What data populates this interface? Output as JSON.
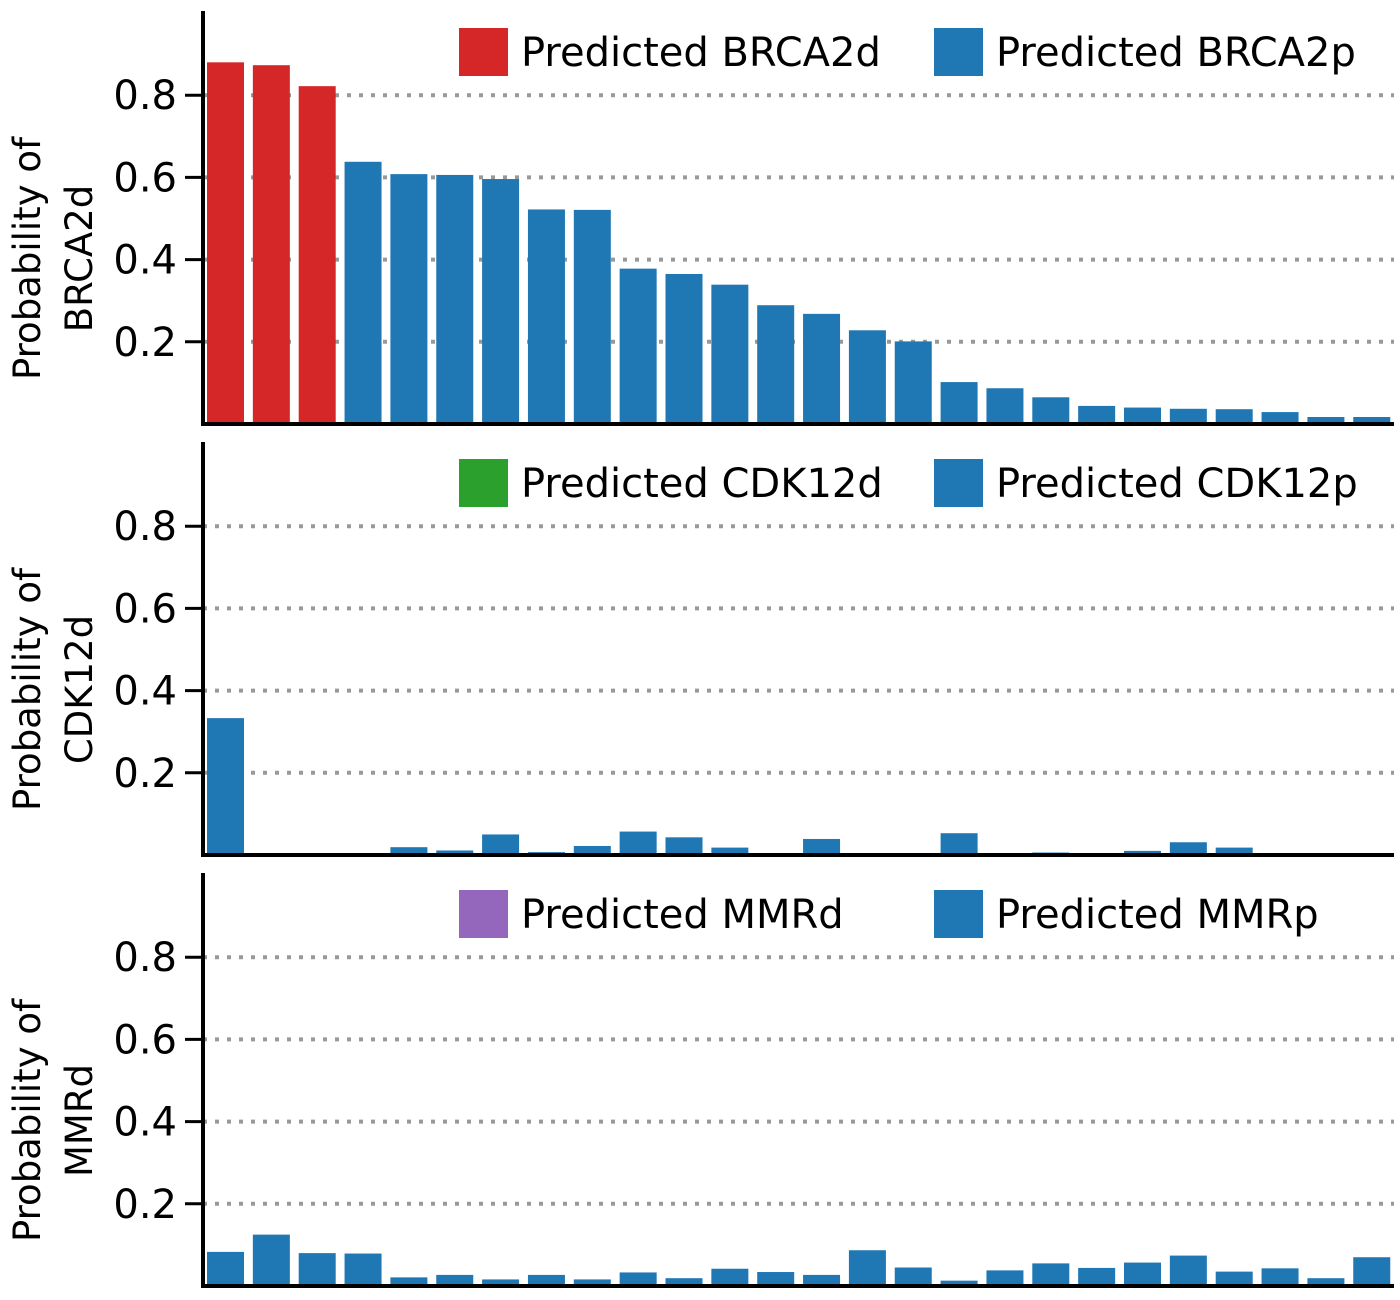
{
  "chart_data": [
    {
      "type": "bar",
      "ylabel_lines": [
        "Probability of",
        "BRCA2d"
      ],
      "ylim": [
        0,
        1.0
      ],
      "yticks": [
        0.2,
        0.4,
        0.6,
        0.8
      ],
      "ytick_labels": [
        "0.2",
        "0.4",
        "0.6",
        "0.8"
      ],
      "grid": "horizontal-dotted",
      "legend_position": "top-right",
      "legend": [
        {
          "label": "Predicted BRCA2d",
          "color": "#d62728"
        },
        {
          "label": "Predicted BRCA2p",
          "color": "#1f77b4"
        }
      ],
      "values": [
        0.88,
        0.873,
        0.822,
        0.638,
        0.608,
        0.606,
        0.596,
        0.522,
        0.521,
        0.378,
        0.365,
        0.339,
        0.289,
        0.268,
        0.228,
        0.201,
        0.102,
        0.087,
        0.065,
        0.044,
        0.04,
        0.037,
        0.036,
        0.029,
        0.017,
        0.017
      ],
      "colors": [
        "#d62728",
        "#d62728",
        "#d62728",
        "#1f77b4",
        "#1f77b4",
        "#1f77b4",
        "#1f77b4",
        "#1f77b4",
        "#1f77b4",
        "#1f77b4",
        "#1f77b4",
        "#1f77b4",
        "#1f77b4",
        "#1f77b4",
        "#1f77b4",
        "#1f77b4",
        "#1f77b4",
        "#1f77b4",
        "#1f77b4",
        "#1f77b4",
        "#1f77b4",
        "#1f77b4",
        "#1f77b4",
        "#1f77b4",
        "#1f77b4",
        "#1f77b4"
      ]
    },
    {
      "type": "bar",
      "ylabel_lines": [
        "Probability of",
        "CDK12d"
      ],
      "ylim": [
        0,
        1.0
      ],
      "yticks": [
        0.2,
        0.4,
        0.6,
        0.8
      ],
      "ytick_labels": [
        "0.2",
        "0.4",
        "0.6",
        "0.8"
      ],
      "grid": "horizontal-dotted",
      "legend_position": "top-right",
      "legend": [
        {
          "label": "Predicted CDK12d",
          "color": "#2ca02c"
        },
        {
          "label": "Predicted CDK12p",
          "color": "#1f77b4"
        }
      ],
      "values": [
        0.333,
        0.004,
        0.004,
        0.004,
        0.019,
        0.011,
        0.05,
        0.007,
        0.022,
        0.057,
        0.043,
        0.018,
        0.004,
        0.039,
        0.004,
        0.002,
        0.053,
        0.004,
        0.006,
        0.004,
        0.01,
        0.031,
        0.018,
        0.003,
        0.003,
        0.003
      ],
      "colors": [
        "#1f77b4",
        "#1f77b4",
        "#1f77b4",
        "#1f77b4",
        "#1f77b4",
        "#1f77b4",
        "#1f77b4",
        "#1f77b4",
        "#1f77b4",
        "#1f77b4",
        "#1f77b4",
        "#1f77b4",
        "#1f77b4",
        "#1f77b4",
        "#1f77b4",
        "#1f77b4",
        "#1f77b4",
        "#1f77b4",
        "#1f77b4",
        "#1f77b4",
        "#1f77b4",
        "#1f77b4",
        "#1f77b4",
        "#1f77b4",
        "#1f77b4",
        "#1f77b4"
      ]
    },
    {
      "type": "bar",
      "ylabel_lines": [
        "Probability of",
        "MMRd"
      ],
      "ylim": [
        0,
        1.0
      ],
      "yticks": [
        0.2,
        0.4,
        0.6,
        0.8
      ],
      "ytick_labels": [
        "0.2",
        "0.4",
        "0.6",
        "0.8"
      ],
      "grid": "horizontal-dotted",
      "legend_position": "top-right",
      "legend": [
        {
          "label": "Predicted MMRd",
          "color": "#9467bd"
        },
        {
          "label": "Predicted MMRp",
          "color": "#1f77b4"
        }
      ],
      "values": [
        0.083,
        0.125,
        0.08,
        0.079,
        0.021,
        0.027,
        0.016,
        0.027,
        0.016,
        0.033,
        0.019,
        0.042,
        0.034,
        0.027,
        0.087,
        0.045,
        0.013,
        0.038,
        0.055,
        0.044,
        0.057,
        0.074,
        0.035,
        0.043,
        0.019,
        0.07
      ],
      "colors": [
        "#1f77b4",
        "#1f77b4",
        "#1f77b4",
        "#1f77b4",
        "#1f77b4",
        "#1f77b4",
        "#1f77b4",
        "#1f77b4",
        "#1f77b4",
        "#1f77b4",
        "#1f77b4",
        "#1f77b4",
        "#1f77b4",
        "#1f77b4",
        "#1f77b4",
        "#1f77b4",
        "#1f77b4",
        "#1f77b4",
        "#1f77b4",
        "#1f77b4",
        "#1f77b4",
        "#1f77b4",
        "#1f77b4",
        "#1f77b4",
        "#1f77b4",
        "#1f77b4"
      ]
    }
  ]
}
